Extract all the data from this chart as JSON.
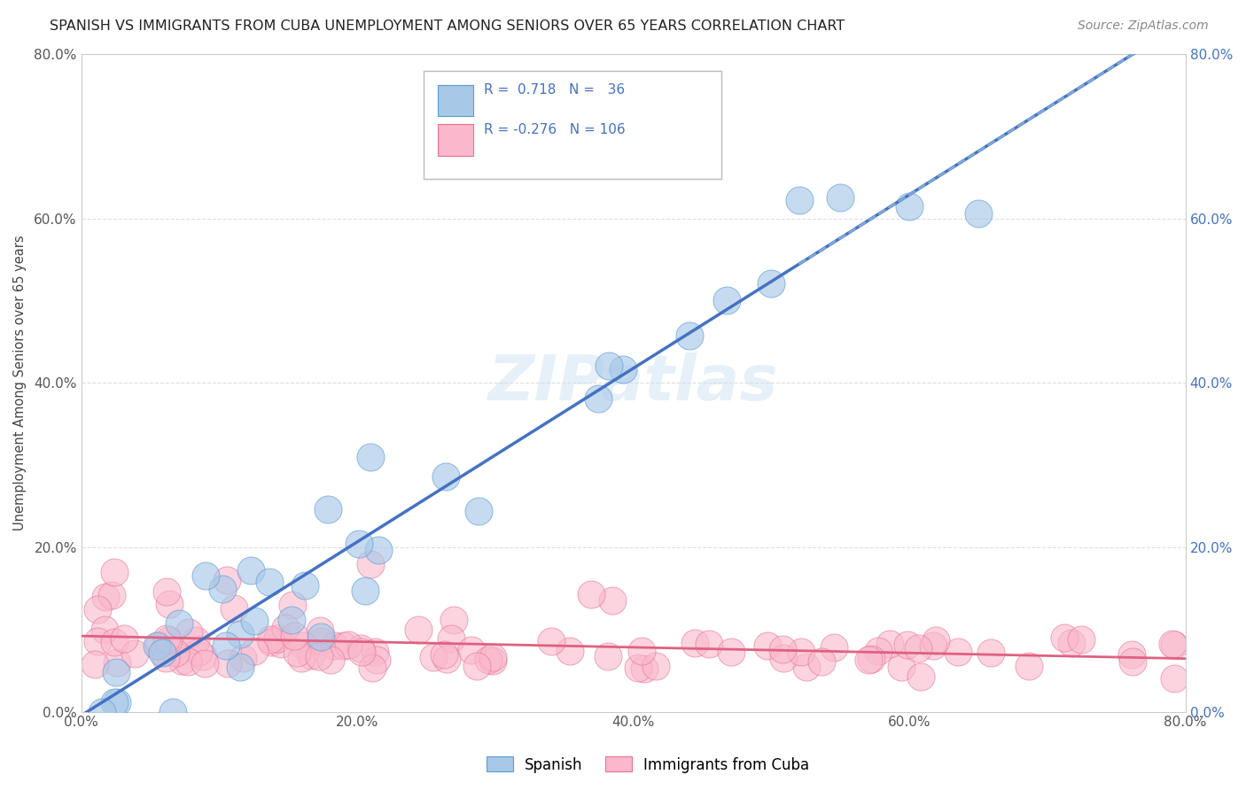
{
  "title": "SPANISH VS IMMIGRANTS FROM CUBA UNEMPLOYMENT AMONG SENIORS OVER 65 YEARS CORRELATION CHART",
  "source": "Source: ZipAtlas.com",
  "ylabel": "Unemployment Among Seniors over 65 years",
  "xlim": [
    0,
    0.8
  ],
  "ylim": [
    0,
    0.8
  ],
  "xticks": [
    0.0,
    0.2,
    0.4,
    0.6,
    0.8
  ],
  "yticks": [
    0.0,
    0.2,
    0.4,
    0.6,
    0.8
  ],
  "xtick_labels": [
    "0.0%",
    "20.0%",
    "40.0%",
    "60.0%",
    "80.0%"
  ],
  "ytick_labels": [
    "0.0%",
    "20.0%",
    "40.0%",
    "60.0%",
    "80.0%"
  ],
  "legend_R1": "0.718",
  "legend_N1": "36",
  "legend_R2": "-0.276",
  "legend_N2": "106",
  "color_spanish_fill": "#a8c8e8",
  "color_spanish_edge": "#5b9bd5",
  "color_cuba_fill": "#f9b8cc",
  "color_cuba_edge": "#e87090",
  "color_line_spanish": "#4472c4",
  "color_line_cuba": "#e06080",
  "color_dash": "#90b8e0",
  "color_right_axis": "#4472c4",
  "color_text_legend": "#4472c4",
  "watermark_text": "ZIPatlas",
  "background": "#ffffff",
  "grid_color": "#dddddd",
  "left_tick_color": "#555555",
  "right_tick_color": "#4472c4"
}
